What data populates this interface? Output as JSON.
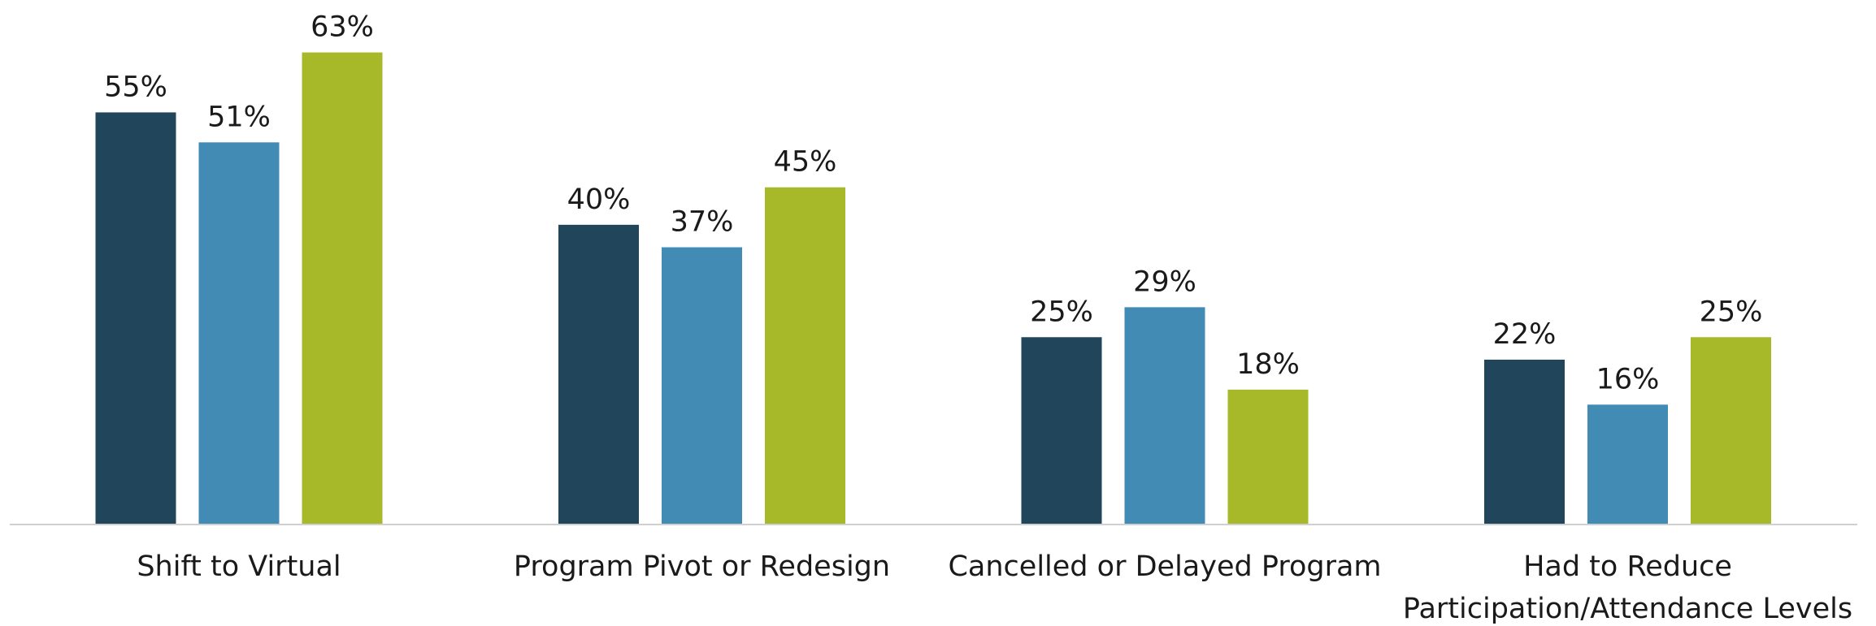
{
  "chart_data": {
    "type": "bar",
    "categories": [
      "Shift to Virtual",
      "Program Pivot or Redesign",
      "Cancelled or Delayed Program",
      "Had to Reduce Participation/Attendance Levels"
    ],
    "series": [
      {
        "color": "#21455a",
        "values": [
          55,
          40,
          25,
          22
        ],
        "value_labels": [
          "55%",
          "40%",
          "25%",
          "22%"
        ]
      },
      {
        "color": "#418bb5",
        "values": [
          51,
          37,
          29,
          16
        ],
        "value_labels": [
          "51%",
          "37%",
          "29%",
          "16%"
        ]
      },
      {
        "color": "#a7b828",
        "values": [
          63,
          45,
          18,
          25
        ],
        "value_labels": [
          "63%",
          "45%",
          "18%",
          "25%"
        ]
      }
    ],
    "ylim": [
      0,
      70
    ]
  }
}
